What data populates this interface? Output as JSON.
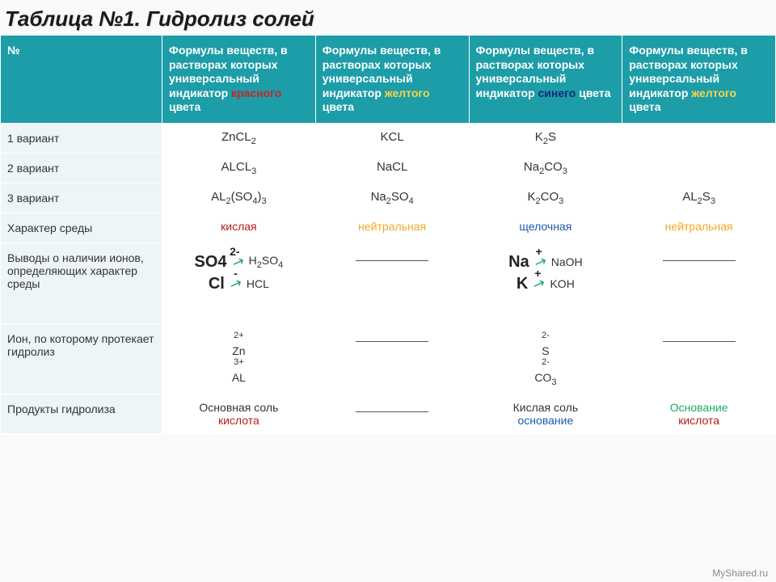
{
  "title": "Таблица №1. Гидролиз солей",
  "header": {
    "num": "№",
    "col1": {
      "pre": "Формулы веществ, в растворах которых универсальный индикатор ",
      "color_word": "красного",
      "post": " цвета"
    },
    "col2": {
      "pre": "Формулы веществ, в растворах которых универсальный индикатор ",
      "color_word": "желтого",
      "post": " цвета"
    },
    "col3": {
      "pre": "Формулы веществ, в растворах которых универсальный индикатор ",
      "color_word": "синего",
      "post": " цвета"
    },
    "col4": {
      "pre": "Формулы веществ, в растворах которых универсальный индикатор ",
      "color_word": "желтого",
      "post": " цвета"
    }
  },
  "rows": {
    "v1": {
      "label": "1 вариант",
      "c1": "ZnCL2",
      "c2": "KCL",
      "c3": "K2S",
      "c4": ""
    },
    "v2": {
      "label": "2 вариант",
      "c1": "ALCL3",
      "c2": "NaCL",
      "c3": "Na2CO3",
      "c4": ""
    },
    "v3": {
      "label": "3 вариант",
      "c1": "AL2(SO4)3",
      "c2": "Na2SO4",
      "c3": "K2CO3",
      "c4": "AL2S3"
    },
    "medium": {
      "label": "Характер среды",
      "c1": "кислая",
      "c2": "нейтральная",
      "c3": "щелочная",
      "c4": "нейтральная"
    },
    "ions": {
      "label": "Выводы о наличии ионов, определяющих характер среды",
      "c1": {
        "ion1": "SO4",
        "ch1": "2-",
        "prod1": "H2SO4",
        "ion2": "Cl",
        "ch2": "-",
        "prod2": "HCL"
      },
      "c3": {
        "ion1": "Na",
        "ch1": "+",
        "prod1": "NaOH",
        "ion2": "K",
        "ch2": "+",
        "prod2": "KOH"
      }
    },
    "hydion": {
      "label": "Ион, по которому протекает гидролиз",
      "c1": {
        "line1_ch": "2+",
        "line1_el": "Zn",
        "line2_ch": "3+",
        "line2_el": "AL"
      },
      "c3": {
        "line1_ch": "2-",
        "line1_el": "S",
        "line2_ch": "2-",
        "line2_el": "CO3"
      }
    },
    "products": {
      "label": "Продукты гидролиза",
      "c1": {
        "l1": "Основная соль",
        "l2": "кислота"
      },
      "c3": {
        "l1": "Кислая соль",
        "l2": "основание"
      },
      "c4": {
        "l1": "Основание",
        "l2": "кислота"
      }
    }
  },
  "watermark": "MyShared.ru",
  "colors": {
    "header_bg": "#1c9da8",
    "rowlabel_bg": "#eef5f7",
    "acid": "#b71c1c",
    "neutral": "#f5a623",
    "alk": "#1a5ab0",
    "arrow": "#1da862",
    "red_word": "#c62626",
    "yellow_word": "#f7d54a",
    "blue_word": "#0b2c72"
  }
}
